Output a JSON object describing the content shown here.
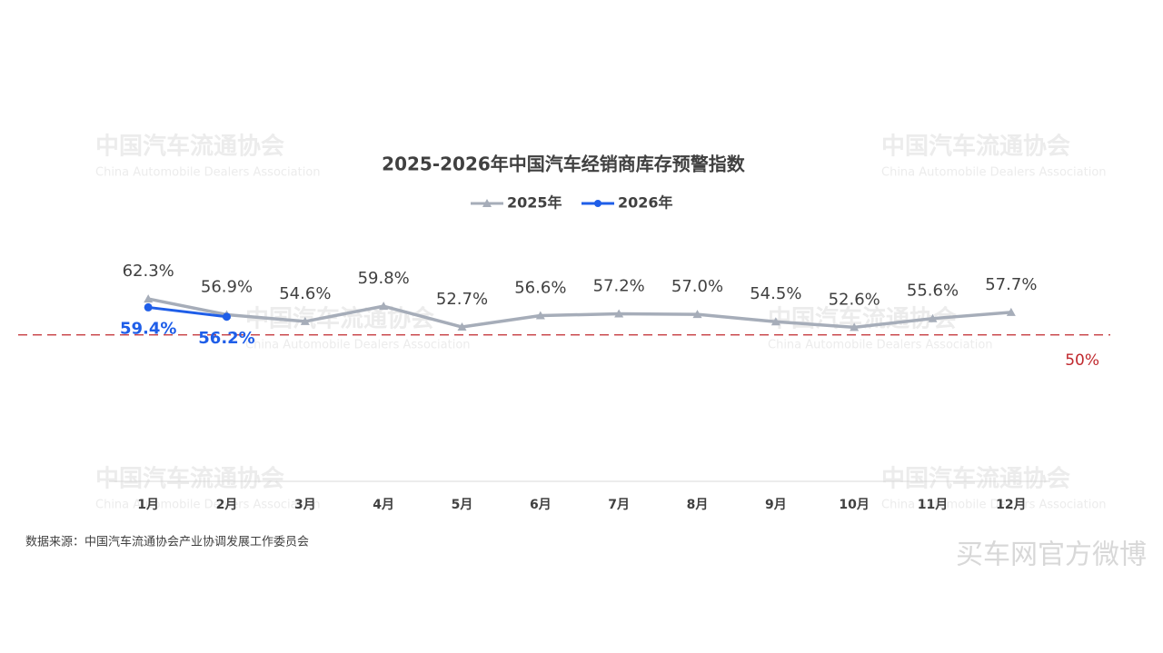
{
  "chart_data": {
    "type": "line",
    "title": "2025-2026年中国汽车经销商库存预警指数",
    "categories": [
      "1月",
      "2月",
      "3月",
      "4月",
      "5月",
      "6月",
      "7月",
      "8月",
      "9月",
      "10月",
      "11月",
      "12月"
    ],
    "series": [
      {
        "name": "2025年",
        "color": "#a6adb9",
        "marker": "triangle",
        "values": [
          62.3,
          56.9,
          54.6,
          59.8,
          52.7,
          56.6,
          57.2,
          57.0,
          54.5,
          52.6,
          55.6,
          57.7
        ],
        "value_labels": [
          "62.3%",
          "56.9%",
          "54.6%",
          "59.8%",
          "52.7%",
          "56.6%",
          "57.2%",
          "57.0%",
          "54.5%",
          "52.6%",
          "55.6%",
          "57.7%"
        ]
      },
      {
        "name": "2026年",
        "color": "#1f5ee8",
        "marker": "circle",
        "values": [
          59.4,
          56.2,
          null,
          null,
          null,
          null,
          null,
          null,
          null,
          null,
          null,
          null
        ],
        "value_labels": [
          "59.4%",
          "56.2%",
          null,
          null,
          null,
          null,
          null,
          null,
          null,
          null,
          null,
          null
        ]
      }
    ],
    "ylim": [
      0,
      80
    ],
    "reference_line": {
      "value": 50,
      "label": "50%",
      "color": "#c0282d"
    },
    "source": "数据来源：中国汽车流通协会产业协调发展工作委员会",
    "watermarks": {
      "cn": "中国汽车流通协会",
      "en": "China Automobile Dealers Association",
      "weibo": "买车网官方微博"
    }
  }
}
